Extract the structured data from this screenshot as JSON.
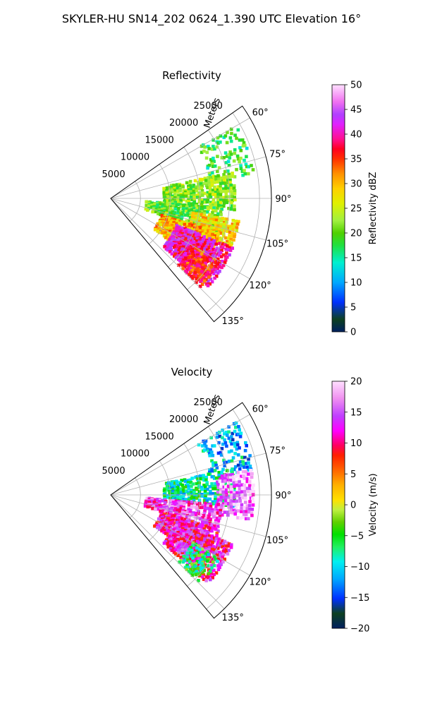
{
  "figure": {
    "suptitle": "SKYLER-HU  SN14_202  0624_1.390 UTC Elevation 16°"
  },
  "chart_data": [
    {
      "type": "polar-sector",
      "title": "Reflectivity",
      "r_axis_label": "Meters",
      "r_ticks": [
        5000,
        10000,
        15000,
        20000,
        25000
      ],
      "r_max": 27000,
      "theta_range_deg": [
        55,
        140
      ],
      "theta_tick_labels": [
        "60°",
        "75°",
        "90°",
        "105°",
        "120°",
        "135°"
      ],
      "theta_ticks": [
        60,
        75,
        90,
        105,
        120,
        135
      ],
      "grid": true,
      "colorbar": {
        "label": "Reflectivity dBZ",
        "min": 0,
        "max": 50,
        "ticks": [
          0,
          5,
          10,
          15,
          20,
          25,
          30,
          35,
          40,
          45,
          50
        ],
        "tick_labels": [
          "0",
          "5",
          "10",
          "15",
          "20",
          "25",
          "30",
          "35",
          "40",
          "45",
          "50"
        ],
        "stops": [
          [
            "#002060",
            0
          ],
          [
            "#0d4020",
            0.05
          ],
          [
            "#0030ff",
            0.12
          ],
          [
            "#00a8ff",
            0.2
          ],
          [
            "#00f0d0",
            0.28
          ],
          [
            "#20e040",
            0.35
          ],
          [
            "#50d000",
            0.4
          ],
          [
            "#a0f040",
            0.45
          ],
          [
            "#e0f000",
            0.52
          ],
          [
            "#ffd000",
            0.58
          ],
          [
            "#ff9000",
            0.64
          ],
          [
            "#ff3000",
            0.7
          ],
          [
            "#ff0020",
            0.74
          ],
          [
            "#ff1090",
            0.78
          ],
          [
            "#e020ff",
            0.84
          ],
          [
            "#b040ff",
            0.88
          ],
          [
            "#f070f0",
            0.93
          ],
          [
            "#ffe0ff",
            1.0
          ]
        ]
      },
      "echo_regions": [
        {
          "theta": [
            60,
            80
          ],
          "r": [
            17000,
            24500
          ],
          "value": 18,
          "density": 0.35
        },
        {
          "theta": [
            78,
            95
          ],
          "r": [
            9000,
            21000
          ],
          "value": 22,
          "density": 0.75
        },
        {
          "theta": [
            95,
            108
          ],
          "r": [
            6000,
            19000
          ],
          "value": 20,
          "density": 0.7
        },
        {
          "theta": [
            100,
            112
          ],
          "r": [
            14000,
            22000
          ],
          "value": 28,
          "density": 0.85
        },
        {
          "theta": [
            108,
            125
          ],
          "r": [
            9000,
            19000
          ],
          "value": 30,
          "density": 0.85
        },
        {
          "theta": [
            112,
            132
          ],
          "r": [
            12000,
            22000
          ],
          "value": 40,
          "density": 0.9
        },
        {
          "theta": [
            120,
            135
          ],
          "r": [
            16000,
            21000
          ],
          "value": 36,
          "density": 0.85
        }
      ]
    },
    {
      "type": "polar-sector",
      "title": "Velocity",
      "r_axis_label": "Meters",
      "r_ticks": [
        5000,
        10000,
        15000,
        20000,
        25000
      ],
      "r_max": 27000,
      "theta_range_deg": [
        55,
        140
      ],
      "theta_tick_labels": [
        "60°",
        "75°",
        "90°",
        "105°",
        "120°",
        "135°"
      ],
      "theta_ticks": [
        60,
        75,
        90,
        105,
        120,
        135
      ],
      "grid": true,
      "colorbar": {
        "label": "Velocity (m/s)",
        "min": -20,
        "max": 20,
        "ticks": [
          -20,
          -15,
          -10,
          -5,
          0,
          5,
          10,
          15,
          20
        ],
        "tick_labels": [
          "−20",
          "−15",
          "−10",
          "−5",
          "0",
          "5",
          "10",
          "15",
          "20"
        ],
        "stops": [
          [
            "#002060",
            0
          ],
          [
            "#0d4020",
            0.06
          ],
          [
            "#0030ff",
            0.12
          ],
          [
            "#00a8ff",
            0.2
          ],
          [
            "#00f0f0",
            0.27
          ],
          [
            "#20f060",
            0.33
          ],
          [
            "#00e000",
            0.38
          ],
          [
            "#60d000",
            0.43
          ],
          [
            "#c0f040",
            0.48
          ],
          [
            "#ffe000",
            0.52
          ],
          [
            "#ffb000",
            0.58
          ],
          [
            "#ff7000",
            0.63
          ],
          [
            "#ff2000",
            0.7
          ],
          [
            "#ff0060",
            0.74
          ],
          [
            "#ff00ff",
            0.8
          ],
          [
            "#c040ff",
            0.86
          ],
          [
            "#f090f0",
            0.93
          ],
          [
            "#ffe0ff",
            1.0
          ]
        ]
      },
      "echo_regions": [
        {
          "theta": [
            60,
            80
          ],
          "r": [
            17000,
            24500
          ],
          "value": -11,
          "density": 0.35
        },
        {
          "theta": [
            78,
            95
          ],
          "r": [
            9000,
            21000
          ],
          "value": -8,
          "density": 0.7
        },
        {
          "theta": [
            80,
            100
          ],
          "r": [
            18000,
            24000
          ],
          "value": 16,
          "density": 0.8
        },
        {
          "theta": [
            95,
            108
          ],
          "r": [
            6000,
            19000
          ],
          "value": 14,
          "density": 0.75
        },
        {
          "theta": [
            108,
            125
          ],
          "r": [
            9000,
            19000
          ],
          "value": 11,
          "density": 0.85
        },
        {
          "theta": [
            112,
            132
          ],
          "r": [
            12000,
            22000
          ],
          "value": 12,
          "density": 0.9
        },
        {
          "theta": [
            120,
            135
          ],
          "r": [
            16000,
            21000
          ],
          "value": -6,
          "density": 0.6
        }
      ]
    }
  ]
}
